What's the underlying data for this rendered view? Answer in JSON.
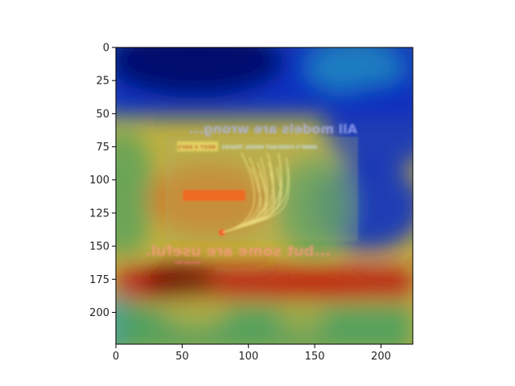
{
  "chart_data": {
    "type": "heatmap",
    "title": "",
    "xlabel": "",
    "ylabel": "",
    "xlim": [
      0,
      224
    ],
    "ylim": [
      224,
      0
    ],
    "x_ticks": [
      0,
      50,
      100,
      150,
      200
    ],
    "y_ticks": [
      0,
      25,
      50,
      75,
      100,
      125,
      150,
      175,
      200
    ],
    "grid": false,
    "legend": "none",
    "colormap": "jet",
    "heatmap_overlay": {
      "cold_band_rows": [
        0,
        52
      ],
      "hot_band_rows": [
        166,
        190
      ],
      "hot_peak": [
        48,
        176
      ],
      "cold_regions": [
        [
          200,
          60
        ],
        [
          190,
          120
        ]
      ],
      "colors": {
        "deep": "#000f6e",
        "blue": "#1030c0",
        "cyan": "#20a0c0",
        "green": "#4aa060",
        "yellow": "#c0b040",
        "orange": "#d87020",
        "red": "#b81010"
      }
    },
    "embedded_image_text": {
      "headline_top": "All models are wrong...",
      "headline_bottom": "...but some are useful.",
      "attribution": "- George Box",
      "panel_title": "HWRF'S FORECAST MODEL TRACKS",
      "badge": "NEXT 4 DAYS"
    }
  }
}
